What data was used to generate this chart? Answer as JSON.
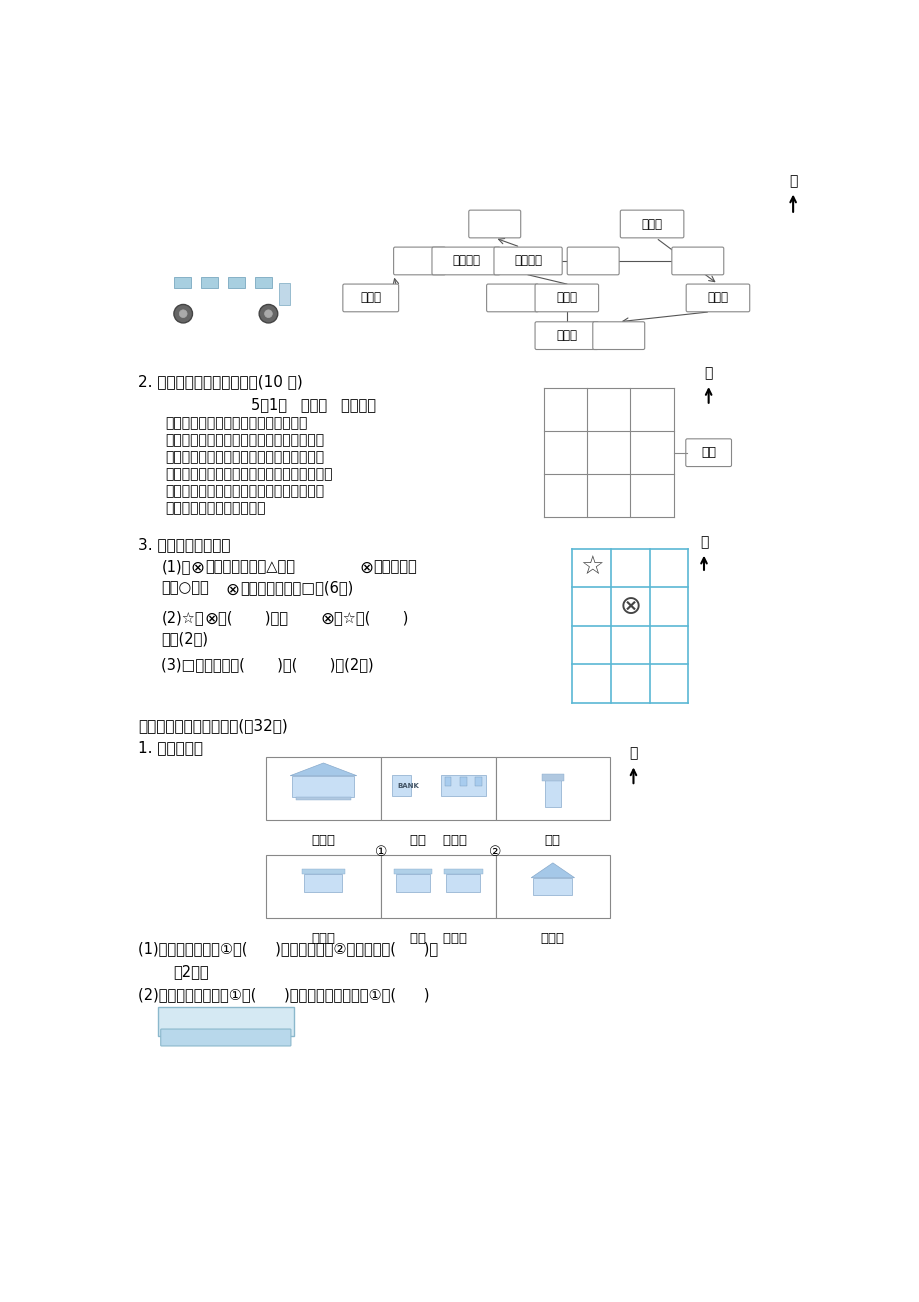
{
  "bg_color": "#ffffff",
  "grid_color_blue": "#5bb8d4",
  "box_edge_color": "#888888",
  "arrow_color": "#666666",
  "north_label": "北",
  "s1_title_missing": true,
  "s2_title": "2. 根据露露的日记填一填。(10 分)",
  "diary_date": "5月1日   星期三   天气：晴",
  "diary_lines": [
    "今天，我和爸爸去采摘园。走进采摘园",
    "的大门，我们先向北走到桃子林，摘了几个",
    "桃子，又向西走到草莓园，看到又大又红的",
    "草莓，我们摘了许多。又向东北走到卫生间，",
    "然后向西走到西瓜地拍照。又向南回到草莓",
    "园，再向南走到后门回家。"
  ],
  "s3_title": "3. 画一画，填一填。",
  "s3_line1a": "(1)在",
  "s3_line1b": "的东南面画一个△，在",
  "s3_line1c": "的西南面画",
  "s3_line2a": "一个○，在",
  "s3_line2b": "的东北面画一个□。(6分)",
  "s3_line3a": "(2)☆在",
  "s3_line3b": "的(       )面，",
  "s3_line3c": "在☆的(       )",
  "s3_line4": "面。(2分)",
  "s3_line5": "(3)□的西南面有(       )和(       )。(2分)",
  "s4_title": "五、聪明的你，答一答。(共32分)",
  "s5_title": "1. 看图填空。",
  "label_huochezhan": "火车站",
  "label_yinhang": "银行",
  "label_tushuguan": "图书馆",
  "label_zhonglou": "钟楼",
  "label_fzd": "服装店",
  "label_chaoshi": "超市",
  "label_bkting": "报刊亭",
  "label_llj": "亮亮家",
  "label_damen": "大门",
  "label_baoyedasha": "报业大厦",
  "label_huxinxiaoqu": "湖心小区",
  "label_xianvshan": "仙女山",
  "label_shaoniangong": "少年宫",
  "label_fzcheng": "服装城",
  "label_dyancheng": "电影城",
  "q1": "(1)银行在十字路口①的(      )角，十字路口②的东北角是(      )。",
  "q1_fen": "（2分）",
  "q2": "(2)火车站在十字路口①的(      )角，超市在十字路口①的(      )"
}
